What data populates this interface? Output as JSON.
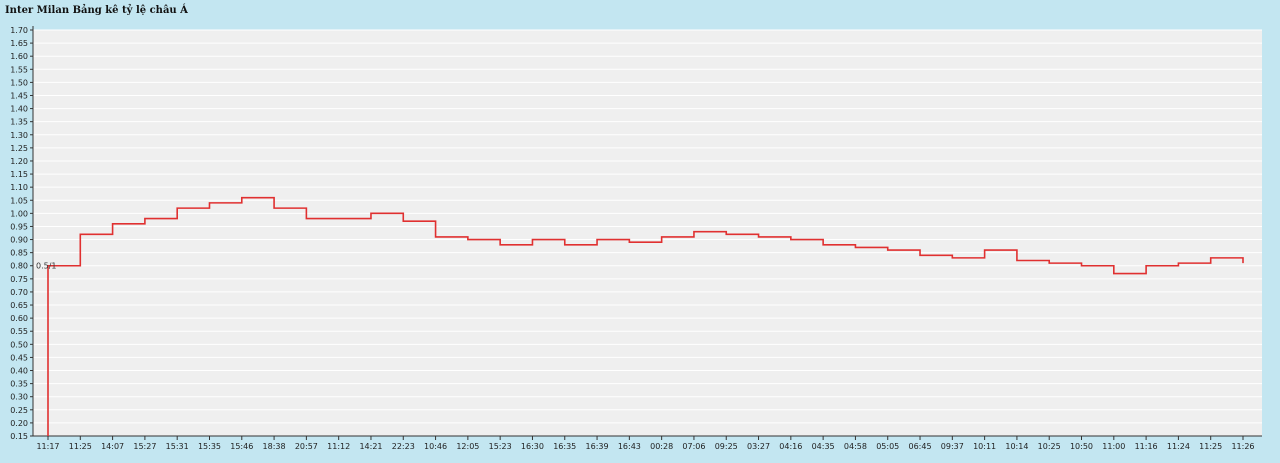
{
  "chart_data": {
    "type": "line",
    "step": true,
    "title": "Inter Milan Bảng kê tỷ lệ châu Á",
    "xlabel": "",
    "ylabel": "",
    "ylim": [
      0.15,
      1.7
    ],
    "y_ticks": [
      0.15,
      0.2,
      0.25,
      0.3,
      0.35,
      0.4,
      0.45,
      0.5,
      0.55,
      0.6,
      0.65,
      0.7,
      0.75,
      0.8,
      0.85,
      0.9,
      0.95,
      1.0,
      1.05,
      1.1,
      1.15,
      1.2,
      1.25,
      1.3,
      1.35,
      1.4,
      1.45,
      1.5,
      1.55,
      1.6,
      1.65,
      1.7
    ],
    "grid": true,
    "legend": "none",
    "line_color": "#e03030",
    "categories": [
      "11:17",
      "11:25",
      "14:07",
      "15:27",
      "15:31",
      "15:35",
      "15:46",
      "18:38",
      "20:57",
      "11:12",
      "14:21",
      "22:23",
      "10:46",
      "12:05",
      "15:23",
      "16:30",
      "16:35",
      "16:39",
      "16:43",
      "00:28",
      "07:06",
      "09:25",
      "03:27",
      "04:16",
      "04:35",
      "04:58",
      "05:05",
      "06:45",
      "09:37",
      "10:11",
      "10:14",
      "10:25",
      "10:50",
      "11:00",
      "11:16",
      "11:24",
      "11:25",
      "11:26"
    ],
    "series": [
      {
        "values": [
          0.8,
          0.92,
          0.96,
          0.98,
          1.02,
          1.04,
          1.06,
          1.02,
          0.98,
          0.98,
          1.0,
          0.97,
          0.91,
          0.9,
          0.88,
          0.9,
          0.88,
          0.9,
          0.89,
          0.91,
          0.93,
          0.92,
          0.91,
          0.9,
          0.88,
          0.87,
          0.86,
          0.84,
          0.83,
          0.86,
          0.82,
          0.81,
          0.8,
          0.77,
          0.8,
          0.81,
          0.83,
          0.81
        ]
      }
    ],
    "annotations": [
      {
        "x": "11:17",
        "y": 0.8,
        "text": "0.5/1"
      }
    ]
  }
}
